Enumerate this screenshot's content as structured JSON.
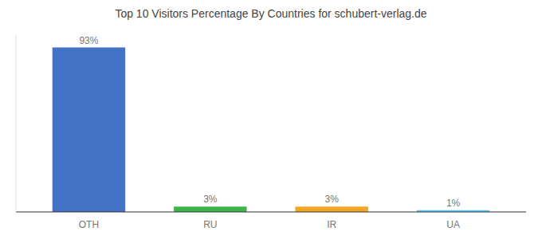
{
  "chart_data": {
    "type": "bar",
    "title": "Top 10 Visitors Percentage By Countries for schubert-verlag.de",
    "categories": [
      "OTH",
      "RU",
      "IR",
      "UA"
    ],
    "values": [
      93,
      3,
      3,
      1
    ],
    "value_labels": [
      "93%",
      "3%",
      "3%",
      "1%"
    ],
    "colors": [
      "#4472c4",
      "#3db54a",
      "#f5a623",
      "#5bc8f5"
    ],
    "ylim": [
      0,
      100
    ],
    "data_labels": true,
    "tick_labels": "x",
    "grid": false
  }
}
